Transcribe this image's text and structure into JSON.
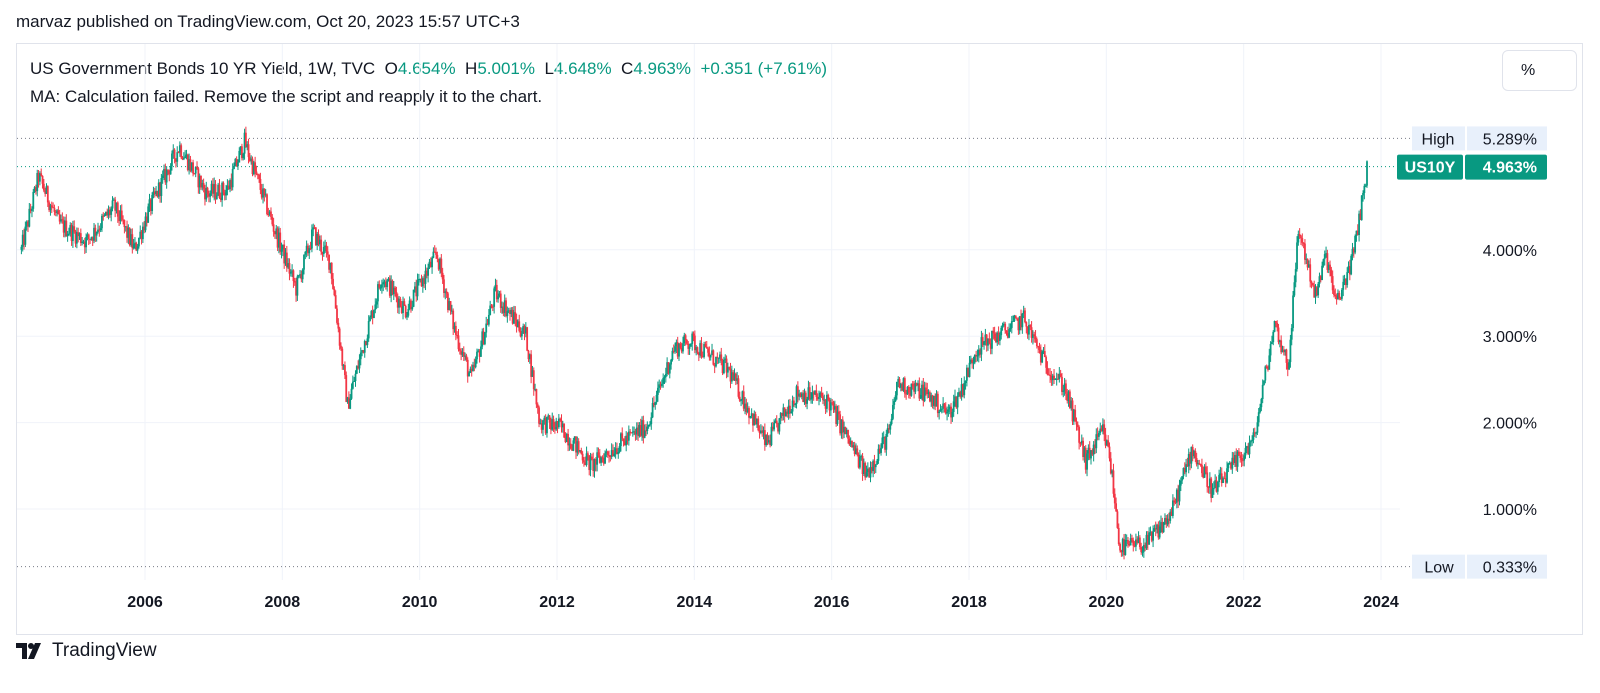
{
  "header": {
    "published": "marvaz published on TradingView.com, Oct 20, 2023 15:57 UTC+3"
  },
  "legend": {
    "title": "US Government Bonds 10 YR Yield, 1W, TVC",
    "o_label": "O",
    "o_value": "4.654%",
    "h_label": "H",
    "h_value": "5.001%",
    "l_label": "L",
    "l_value": "4.648%",
    "c_label": "C",
    "c_value": "4.963%",
    "change": "+0.351 (+7.61%)",
    "ma_error": "MA: Calculation failed. Remove the script and reapply it to the chart."
  },
  "scale_button": "%",
  "brand": {
    "name": "TradingView",
    "icon": "tradingview-logo-icon"
  },
  "colors": {
    "up": "#089981",
    "down": "#f23645",
    "grid": "#f0f3fa",
    "axis_text": "#131722",
    "tag_bg": "#e8f0fb"
  },
  "chart_data": {
    "type": "candlestick",
    "symbol": "US10Y",
    "timeframe": "1W",
    "x_range": [
      2004.2,
      2024.95
    ],
    "y_range": [
      0.33,
      5.289
    ],
    "x_ticks": [
      "2006",
      "2008",
      "2010",
      "2012",
      "2014",
      "2016",
      "2018",
      "2020",
      "2022",
      "2024"
    ],
    "y_ticks": [
      "1.000%",
      "2.000%",
      "3.000%",
      "4.000%"
    ],
    "high_label": "High",
    "high_value": "5.289%",
    "low_label": "Low",
    "low_value": "0.333%",
    "last_label": "US10Y",
    "last_value": "4.963%",
    "anchors": [
      [
        2004.2,
        4.0
      ],
      [
        2004.45,
        4.85
      ],
      [
        2004.75,
        4.3
      ],
      [
        2005.15,
        4.1
      ],
      [
        2005.55,
        4.5
      ],
      [
        2005.85,
        4.0
      ],
      [
        2006.05,
        4.45
      ],
      [
        2006.5,
        5.2
      ],
      [
        2006.9,
        4.65
      ],
      [
        2007.2,
        4.7
      ],
      [
        2007.45,
        5.25
      ],
      [
        2007.9,
        4.2
      ],
      [
        2008.2,
        3.55
      ],
      [
        2008.45,
        4.2
      ],
      [
        2008.7,
        3.85
      ],
      [
        2008.95,
        2.2
      ],
      [
        2009.45,
        3.7
      ],
      [
        2009.8,
        3.3
      ],
      [
        2010.25,
        3.95
      ],
      [
        2010.5,
        3.1
      ],
      [
        2010.75,
        2.5
      ],
      [
        2011.1,
        3.5
      ],
      [
        2011.55,
        3.0
      ],
      [
        2011.75,
        2.0
      ],
      [
        2012.05,
        1.95
      ],
      [
        2012.5,
        1.5
      ],
      [
        2012.9,
        1.75
      ],
      [
        2013.3,
        1.95
      ],
      [
        2013.7,
        2.85
      ],
      [
        2013.95,
        2.95
      ],
      [
        2014.5,
        2.6
      ],
      [
        2015.05,
        1.75
      ],
      [
        2015.5,
        2.35
      ],
      [
        2015.95,
        2.25
      ],
      [
        2016.5,
        1.4
      ],
      [
        2016.85,
        1.9
      ],
      [
        2016.95,
        2.45
      ],
      [
        2017.35,
        2.35
      ],
      [
        2017.7,
        2.1
      ],
      [
        2017.9,
        2.4
      ],
      [
        2018.1,
        2.85
      ],
      [
        2018.4,
        3.0
      ],
      [
        2018.8,
        3.2
      ],
      [
        2019.1,
        2.7
      ],
      [
        2019.4,
        2.4
      ],
      [
        2019.7,
        1.55
      ],
      [
        2019.95,
        1.9
      ],
      [
        2020.05,
        1.6
      ],
      [
        2020.2,
        0.55
      ],
      [
        2020.6,
        0.6
      ],
      [
        2020.95,
        0.95
      ],
      [
        2021.25,
        1.7
      ],
      [
        2021.55,
        1.2
      ],
      [
        2021.9,
        1.55
      ],
      [
        2022.15,
        1.8
      ],
      [
        2022.45,
        3.15
      ],
      [
        2022.65,
        2.65
      ],
      [
        2022.8,
        4.25
      ],
      [
        2023.05,
        3.45
      ],
      [
        2023.2,
        3.95
      ],
      [
        2023.35,
        3.35
      ],
      [
        2023.6,
        3.95
      ],
      [
        2023.8,
        4.96
      ]
    ]
  }
}
